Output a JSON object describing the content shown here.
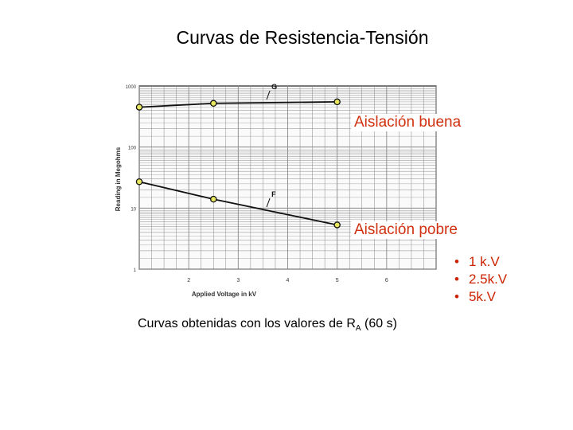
{
  "slide": {
    "title": "Curvas de Resistencia-Tensión",
    "callout_good": "Aislación buena",
    "callout_poor": "Aislación pobre",
    "bullets": [
      "1 k.V",
      "2.5k.V",
      "5k.V"
    ],
    "caption_pre": "Curvas obtenidas con los valores de R",
    "caption_sub": "A",
    "caption_post": " (60 s)"
  },
  "chart_data": {
    "type": "line",
    "xlabel": "Applied Voltage in kV",
    "ylabel": "Reading in Megohms",
    "xlim": [
      1,
      7
    ],
    "ylim": [
      1,
      1000
    ],
    "yscale": "log",
    "grid": true,
    "x_ticks": [
      "2",
      "3",
      "4",
      "5",
      "6"
    ],
    "y_ticks": [
      "1",
      "10",
      "100",
      "1000"
    ],
    "series": [
      {
        "name": "G",
        "x": [
          1,
          2.5,
          5
        ],
        "y": [
          450,
          520,
          550
        ]
      },
      {
        "name": "F",
        "x": [
          1,
          2.5,
          5
        ],
        "y": [
          27,
          14,
          5.3
        ]
      }
    ],
    "colors": {
      "line": "#111111",
      "marker_fill": "#e8e860",
      "grid": "#888888"
    }
  }
}
